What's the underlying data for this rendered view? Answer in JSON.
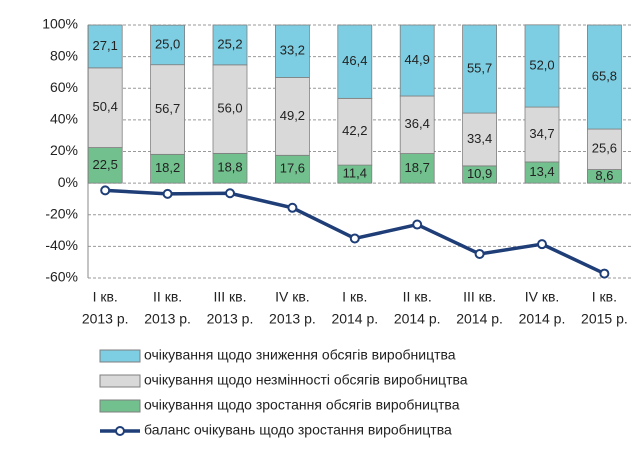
{
  "chart_data": {
    "type": "stacked_bar_line",
    "categories": [
      [
        "І кв.",
        "2013 р."
      ],
      [
        "ІІ кв.",
        "2013 р."
      ],
      [
        "ІІІ кв.",
        "2013 р."
      ],
      [
        "IV кв.",
        "2013 р."
      ],
      [
        "І кв.",
        "2014 р."
      ],
      [
        "ІІ кв.",
        "2014 р."
      ],
      [
        "ІІІ кв.",
        "2014 р."
      ],
      [
        "IV кв.",
        "2014 р."
      ],
      [
        "І кв.",
        "2015 р."
      ]
    ],
    "series": [
      {
        "name": "очікування щодо зростання обсягів виробництва",
        "color": "#72c08e",
        "type": "bar",
        "values": [
          22.5,
          18.2,
          18.8,
          17.6,
          11.4,
          18.7,
          10.9,
          13.4,
          8.6
        ],
        "value_labels": [
          "22,5",
          "18,2",
          "18,8",
          "17,6",
          "11,4",
          "18,7",
          "10,9",
          "13,4",
          "8,6"
        ]
      },
      {
        "name": "очікування щодо незмінності обсягів виробництва",
        "color": "#d9d9d9",
        "type": "bar",
        "values": [
          50.4,
          56.7,
          56.0,
          49.2,
          42.2,
          36.4,
          33.4,
          34.7,
          25.6
        ],
        "value_labels": [
          "50,4",
          "56,7",
          "56,0",
          "49,2",
          "42,2",
          "36,4",
          "33,4",
          "34,7",
          "25,6"
        ]
      },
      {
        "name": "очікування щодо зниження обсягів виробництва",
        "color": "#7dcee2",
        "type": "bar",
        "values": [
          27.1,
          25.0,
          25.2,
          33.2,
          46.4,
          44.9,
          55.7,
          52.0,
          65.8
        ],
        "value_labels": [
          "27,1",
          "25,0",
          "25,2",
          "33,2",
          "46,4",
          "44,9",
          "55,7",
          "52,0",
          "65,8"
        ]
      },
      {
        "name": "баланс очікувань щодо зростання виробництва",
        "color": "#1f3e78",
        "type": "line",
        "values": [
          -4.6,
          -6.8,
          -6.4,
          -15.6,
          -35.0,
          -26.2,
          -44.8,
          -38.6,
          -57.2
        ]
      }
    ],
    "ylim": [
      -60,
      100
    ],
    "yticks": [
      {
        "value": -60,
        "label": "-60%"
      },
      {
        "value": -40,
        "label": "-40%"
      },
      {
        "value": -20,
        "label": "-20%"
      },
      {
        "value": 0,
        "label": "0%"
      },
      {
        "value": 20,
        "label": "20%"
      },
      {
        "value": 40,
        "label": "40%"
      },
      {
        "value": 60,
        "label": "60%"
      },
      {
        "value": 80,
        "label": "80%"
      },
      {
        "value": 100,
        "label": "100%"
      }
    ],
    "grid": true
  }
}
